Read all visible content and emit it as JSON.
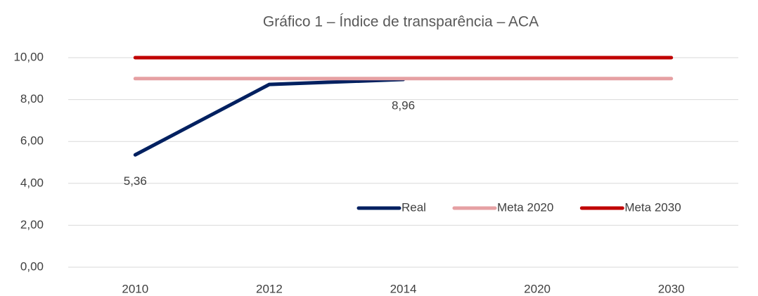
{
  "chart_data": {
    "type": "line",
    "title": "Gráfico 1 – Índice de transparência – ACA",
    "categories": [
      "2010",
      "2012",
      "2014",
      "2020",
      "2030"
    ],
    "series": [
      {
        "name": "Real",
        "color": "#002060",
        "values": [
          5.36,
          8.72,
          8.96,
          null,
          null
        ],
        "value_labels": [
          "5,36",
          null,
          "8,96",
          null,
          null
        ]
      },
      {
        "name": "Meta 2020",
        "color": "#e6a0a3",
        "values": [
          9,
          9,
          9,
          9,
          9
        ]
      },
      {
        "name": "Meta 2030",
        "color": "#c00000",
        "values": [
          10,
          10,
          10,
          10,
          10
        ]
      }
    ],
    "ylim": [
      0,
      10
    ],
    "yticks": [
      {
        "value": 0,
        "label": "0,00"
      },
      {
        "value": 2,
        "label": "2,00"
      },
      {
        "value": 4,
        "label": "4,00"
      },
      {
        "value": 6,
        "label": "6,00"
      },
      {
        "value": 8,
        "label": "8,00"
      },
      {
        "value": 10,
        "label": "10,00"
      }
    ],
    "grid": true,
    "legend": "center right"
  }
}
